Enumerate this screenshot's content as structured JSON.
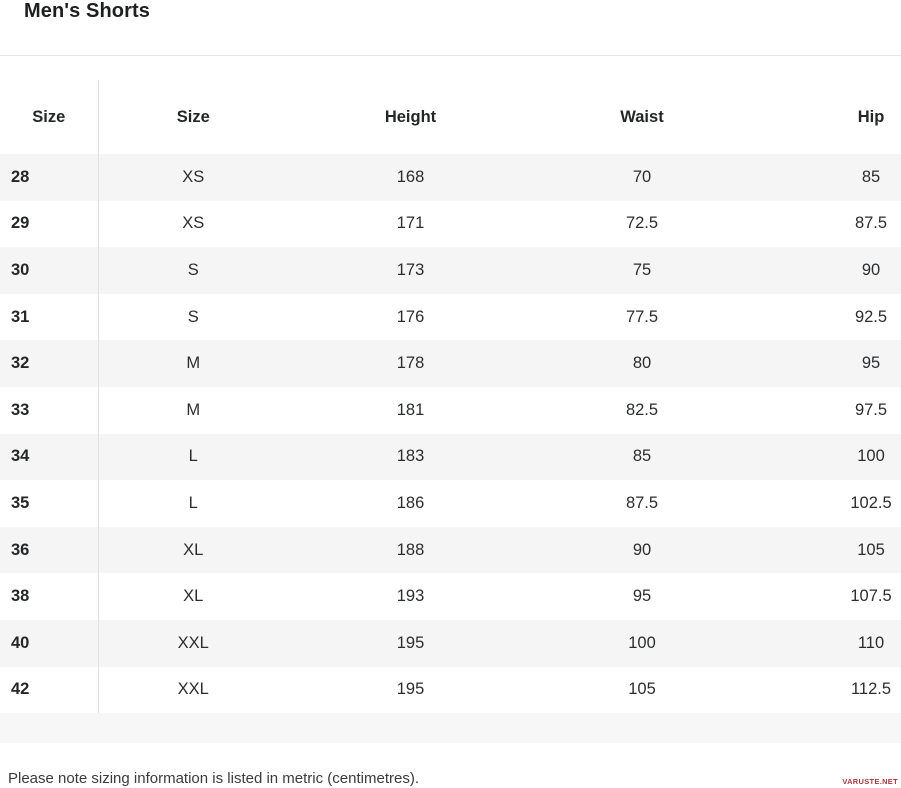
{
  "page": {
    "title": "Men's Shorts",
    "footnote": "Please note sizing information is listed in metric (centimetres).",
    "watermark": "VARUSTE.NET"
  },
  "chart_data": {
    "type": "table",
    "title": "Men's Shorts",
    "units": "centimetres",
    "columns": [
      "Size",
      "Size",
      "Height",
      "Waist",
      "Hip"
    ],
    "rows": [
      [
        "28",
        "XS",
        "168",
        "70",
        "85"
      ],
      [
        "29",
        "XS",
        "171",
        "72.5",
        "87.5"
      ],
      [
        "30",
        "S",
        "173",
        "75",
        "90"
      ],
      [
        "31",
        "S",
        "176",
        "77.5",
        "92.5"
      ],
      [
        "32",
        "M",
        "178",
        "80",
        "95"
      ],
      [
        "33",
        "M",
        "181",
        "82.5",
        "97.5"
      ],
      [
        "34",
        "L",
        "183",
        "85",
        "100"
      ],
      [
        "35",
        "L",
        "186",
        "87.5",
        "102.5"
      ],
      [
        "36",
        "XL",
        "188",
        "90",
        "105"
      ],
      [
        "38",
        "XL",
        "193",
        "95",
        "107.5"
      ],
      [
        "40",
        "XXL",
        "195",
        "100",
        "110"
      ],
      [
        "42",
        "XXL",
        "195",
        "105",
        "112.5"
      ]
    ],
    "note": "Please note sizing information is listed in metric (centimetres)."
  },
  "colors": {
    "row_stripe": "#f5f5f5",
    "footer_strip": "#f7f7f7",
    "column_divider": "#e0e0e0",
    "top_rule": "#e4e4e4",
    "text": "#2b2d2f",
    "watermark_red": "#a63a3e"
  }
}
